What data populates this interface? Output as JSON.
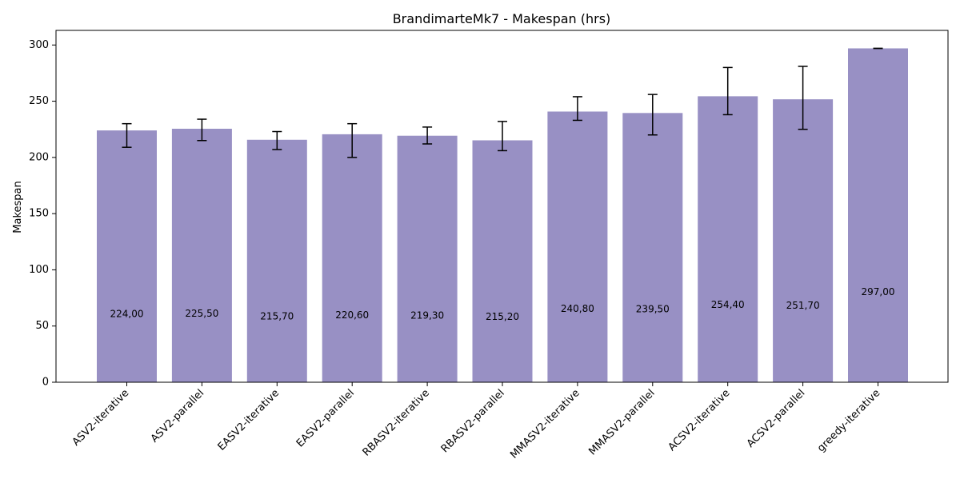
{
  "chart_data": {
    "type": "bar",
    "title": "BrandimarteMk7 - Makespan (hrs)",
    "xlabel": "",
    "ylabel": "Makespan",
    "ylim": [
      0,
      313
    ],
    "yticks": [
      0,
      50,
      100,
      150,
      200,
      250,
      300
    ],
    "grid": false,
    "bar_color": "#9890c4",
    "categories": [
      "ASV2-iterative",
      "ASV2-parallel",
      "EASV2-iterative",
      "EASV2-parallel",
      "RBASV2-iterative",
      "RBASV2-parallel",
      "MMASV2-iterative",
      "MMASV2-parallel",
      "ACSV2-iterative",
      "ACSV2-parallel",
      "greedy-iterative"
    ],
    "values": [
      224.0,
      225.5,
      215.7,
      220.6,
      219.3,
      215.2,
      240.8,
      239.5,
      254.4,
      251.7,
      297.0
    ],
    "value_labels": [
      "224,00",
      "225,50",
      "215,70",
      "220,60",
      "219,30",
      "215,20",
      "240,80",
      "239,50",
      "254,40",
      "251,70",
      "297,00"
    ],
    "error_low": [
      209,
      215,
      207,
      200,
      212,
      206,
      233,
      220,
      238,
      225,
      297
    ],
    "error_high": [
      230,
      234,
      223,
      230,
      227,
      232,
      254,
      256,
      280,
      281,
      297
    ]
  }
}
